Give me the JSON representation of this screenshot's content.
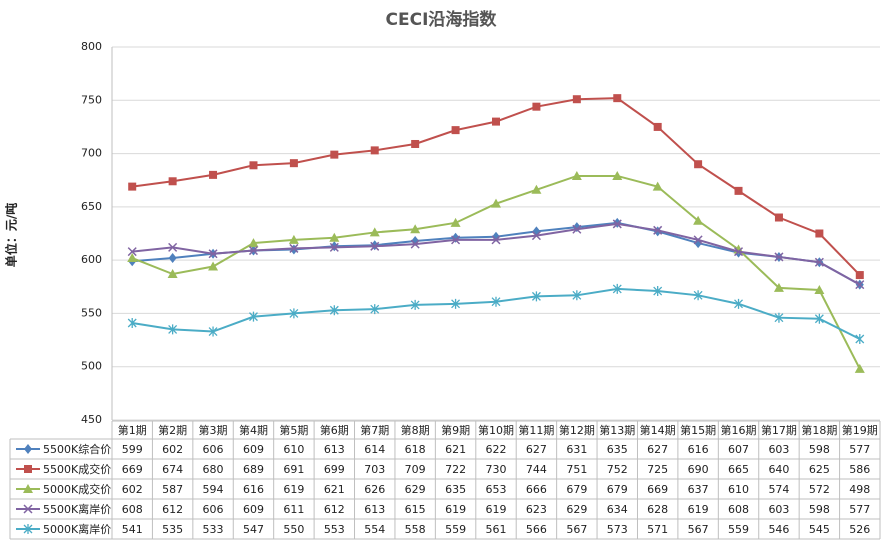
{
  "chart_data": {
    "type": "line",
    "title": "CECI沿海指数",
    "y_label": "单位：元/吨",
    "categories": [
      "第1期",
      "第2期",
      "第3期",
      "第4期",
      "第5期",
      "第6期",
      "第7期",
      "第8期",
      "第9期",
      "第10期",
      "第11期",
      "第12期",
      "第13期",
      "第14期",
      "第15期",
      "第16期",
      "第17期",
      "第18期",
      "第19期"
    ],
    "series": [
      {
        "name": "5500K综合价",
        "color": "#4f81bd",
        "marker": "diamond",
        "values": [
          599,
          602,
          606,
          609,
          610,
          613,
          614,
          618,
          621,
          622,
          627,
          631,
          635,
          627,
          616,
          607,
          603,
          598,
          577
        ]
      },
      {
        "name": "5500K成交价",
        "color": "#c0504d",
        "marker": "square",
        "values": [
          669,
          674,
          680,
          689,
          691,
          699,
          703,
          709,
          722,
          730,
          744,
          751,
          752,
          725,
          690,
          665,
          640,
          625,
          586
        ]
      },
      {
        "name": "5000K成交价",
        "color": "#9bbb59",
        "marker": "triangle",
        "values": [
          602,
          587,
          594,
          616,
          619,
          621,
          626,
          629,
          635,
          653,
          666,
          679,
          679,
          669,
          637,
          610,
          574,
          572,
          498
        ]
      },
      {
        "name": "5500K离岸价",
        "color": "#8064a2",
        "marker": "x",
        "values": [
          608,
          612,
          606,
          609,
          611,
          612,
          613,
          615,
          619,
          619,
          623,
          629,
          634,
          628,
          619,
          608,
          603,
          598,
          577
        ]
      },
      {
        "name": "5000K离岸价",
        "color": "#4bacc6",
        "marker": "star",
        "values": [
          541,
          535,
          533,
          547,
          550,
          553,
          554,
          558,
          559,
          561,
          566,
          567,
          573,
          571,
          567,
          559,
          546,
          545,
          526
        ]
      }
    ],
    "ylim": [
      450,
      800
    ],
    "yticks": [
      450,
      500,
      550,
      600,
      650,
      700,
      750,
      800
    ],
    "grid": true
  }
}
